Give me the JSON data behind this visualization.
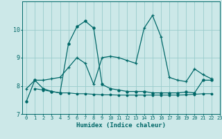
{
  "xlabel": "Humidex (Indice chaleur)",
  "xlim": [
    -0.5,
    23
  ],
  "ylim": [
    7,
    11
  ],
  "yticks": [
    7,
    8,
    9,
    10
  ],
  "xticks": [
    0,
    1,
    2,
    3,
    4,
    5,
    6,
    7,
    8,
    9,
    10,
    11,
    12,
    13,
    14,
    15,
    16,
    17,
    18,
    19,
    20,
    21,
    22,
    23
  ],
  "bg_color": "#cce8e8",
  "line_color": "#006868",
  "grid_color": "#99cccc",
  "series1_x": [
    0,
    1,
    2,
    3,
    4,
    5,
    6,
    7,
    8,
    9,
    10,
    11,
    12,
    13,
    14,
    15,
    16,
    17,
    18,
    19,
    20,
    21,
    22
  ],
  "series1_y": [
    7.45,
    8.2,
    7.9,
    7.8,
    7.75,
    9.5,
    10.1,
    10.3,
    10.05,
    8.05,
    7.9,
    7.85,
    7.8,
    7.8,
    7.8,
    7.75,
    7.75,
    7.75,
    7.75,
    7.78,
    7.75,
    8.2,
    8.2
  ],
  "series2_x": [
    1,
    2,
    3,
    4,
    5,
    6,
    7,
    8,
    9,
    10,
    11,
    12,
    13,
    14,
    15,
    16,
    17,
    18,
    19,
    20,
    21,
    22
  ],
  "series2_y": [
    7.9,
    7.85,
    7.8,
    7.75,
    7.75,
    7.72,
    7.72,
    7.7,
    7.68,
    7.68,
    7.67,
    7.67,
    7.67,
    7.67,
    7.67,
    7.67,
    7.67,
    7.67,
    7.68,
    7.7,
    7.72,
    7.72
  ],
  "series3_x": [
    0,
    1,
    2,
    3,
    4,
    5,
    6,
    7,
    8,
    9,
    10,
    11,
    12,
    13,
    14,
    15,
    16,
    17,
    18,
    19,
    20,
    21,
    22
  ],
  "series3_y": [
    7.9,
    8.2,
    8.2,
    8.25,
    8.3,
    8.65,
    9.0,
    8.8,
    8.05,
    9.0,
    9.05,
    9.0,
    8.9,
    8.8,
    10.05,
    10.5,
    9.75,
    8.3,
    8.2,
    8.15,
    8.6,
    8.4,
    8.25
  ]
}
